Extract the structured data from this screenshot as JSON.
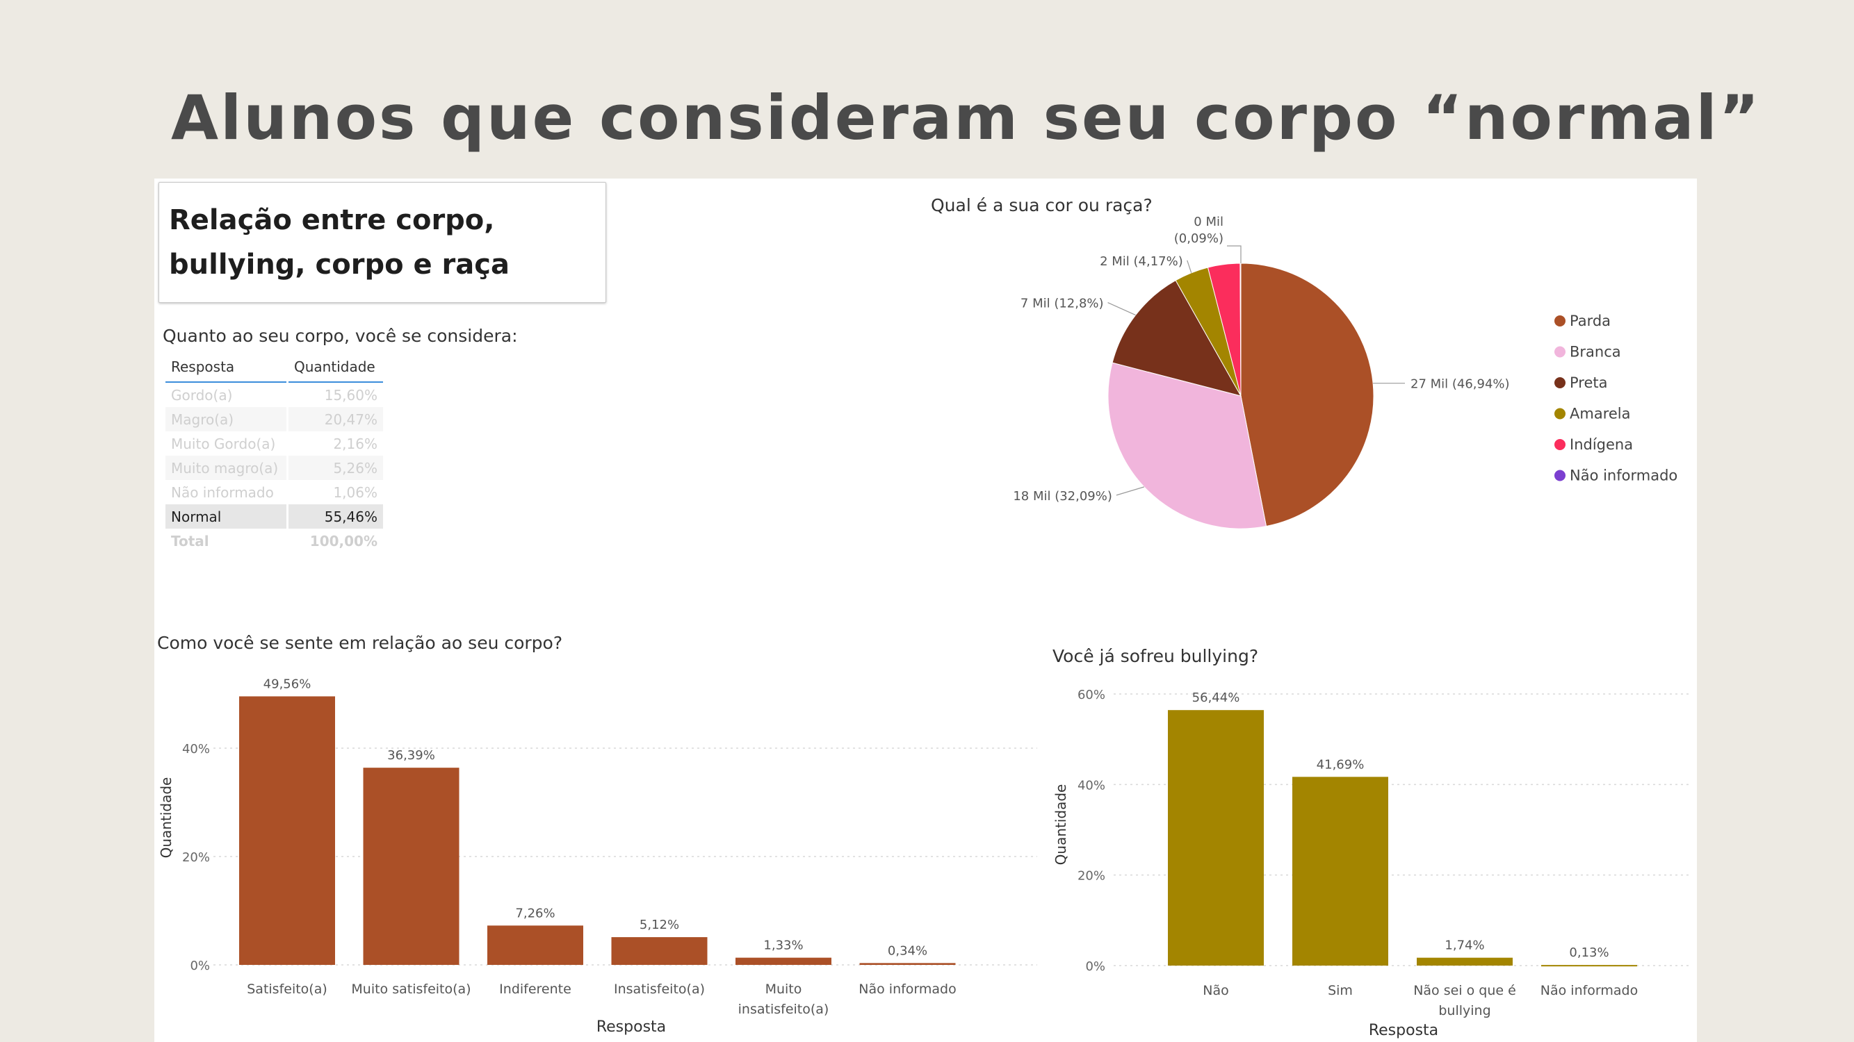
{
  "slide": {
    "title": "Alunos que consideram seu corpo “normal”"
  },
  "dashboard": {
    "title": "Relação entre corpo, bullying, corpo e raça"
  },
  "table": {
    "title": "Quanto ao seu corpo, você se considera:",
    "headers": [
      "Resposta",
      "Quantidade"
    ],
    "rows": [
      {
        "resposta": "Gordo(a)",
        "quantidade": "15,60%"
      },
      {
        "resposta": "Magro(a)",
        "quantidade": "20,47%"
      },
      {
        "resposta": "Muito Gordo(a)",
        "quantidade": "2,16%"
      },
      {
        "resposta": "Muito magro(a)",
        "quantidade": "5,26%"
      },
      {
        "resposta": "Não informado",
        "quantidade": "1,06%"
      },
      {
        "resposta": "Normal",
        "quantidade": "55,46%"
      }
    ],
    "total": {
      "resposta": "Total",
      "quantidade": "100,00%"
    }
  },
  "chart_data": [
    {
      "type": "pie",
      "title": "Qual é a sua cor ou raça?",
      "slices": [
        {
          "label": "Parda",
          "value": 46.94,
          "data_label": "27 Mil (46,94%)",
          "color": "#ab5027"
        },
        {
          "label": "Branca",
          "value": 32.09,
          "data_label": "18 Mil (32,09%)",
          "color": "#f1b5dc"
        },
        {
          "label": "Preta",
          "value": 12.8,
          "data_label": "7 Mil (12,8%)",
          "color": "#77311b"
        },
        {
          "label": "Amarela",
          "value": 4.17,
          "data_label": "2 Mil (4,17%)",
          "color": "#a38500"
        },
        {
          "label": "Indígena",
          "value": 3.91,
          "data_label": "",
          "color": "#fb2d5c"
        },
        {
          "label": "Não informado",
          "value": 0.09,
          "data_label": "0 Mil (0,09%)",
          "color": "#7b3fd0"
        }
      ],
      "legend_position": "right"
    },
    {
      "type": "bar",
      "title": "Como você se sente em relação ao seu corpo?",
      "categories": [
        "Satisfeito(a)",
        "Muito satisfeito(a)",
        "Indiferente",
        "Insatisfeito(a)",
        "Muito insatisfeito(a)",
        "Não informado"
      ],
      "values": [
        49.56,
        36.39,
        7.26,
        5.12,
        1.33,
        0.34
      ],
      "data_labels": [
        "49,56%",
        "36,39%",
        "7,26%",
        "5,12%",
        "1,33%",
        "0,34%"
      ],
      "xlabel": "Resposta",
      "ylabel": "Quantidade",
      "yticks": [
        "0%",
        "20%",
        "40%"
      ],
      "ylim": [
        0,
        50
      ],
      "grid": true,
      "color": "#ab5027"
    },
    {
      "type": "bar",
      "title": "Você já sofreu bullying?",
      "categories": [
        "Não",
        "Sim",
        "Não sei o que é bullying",
        "Não informado"
      ],
      "values": [
        56.44,
        41.69,
        1.74,
        0.13
      ],
      "data_labels": [
        "56,44%",
        "41,69%",
        "1,74%",
        "0,13%"
      ],
      "xlabel": "Resposta",
      "ylabel": "Quantidade",
      "yticks": [
        "0%",
        "20%",
        "40%",
        "60%"
      ],
      "ylim": [
        0,
        60
      ],
      "grid": true,
      "color": "#a38500"
    }
  ]
}
